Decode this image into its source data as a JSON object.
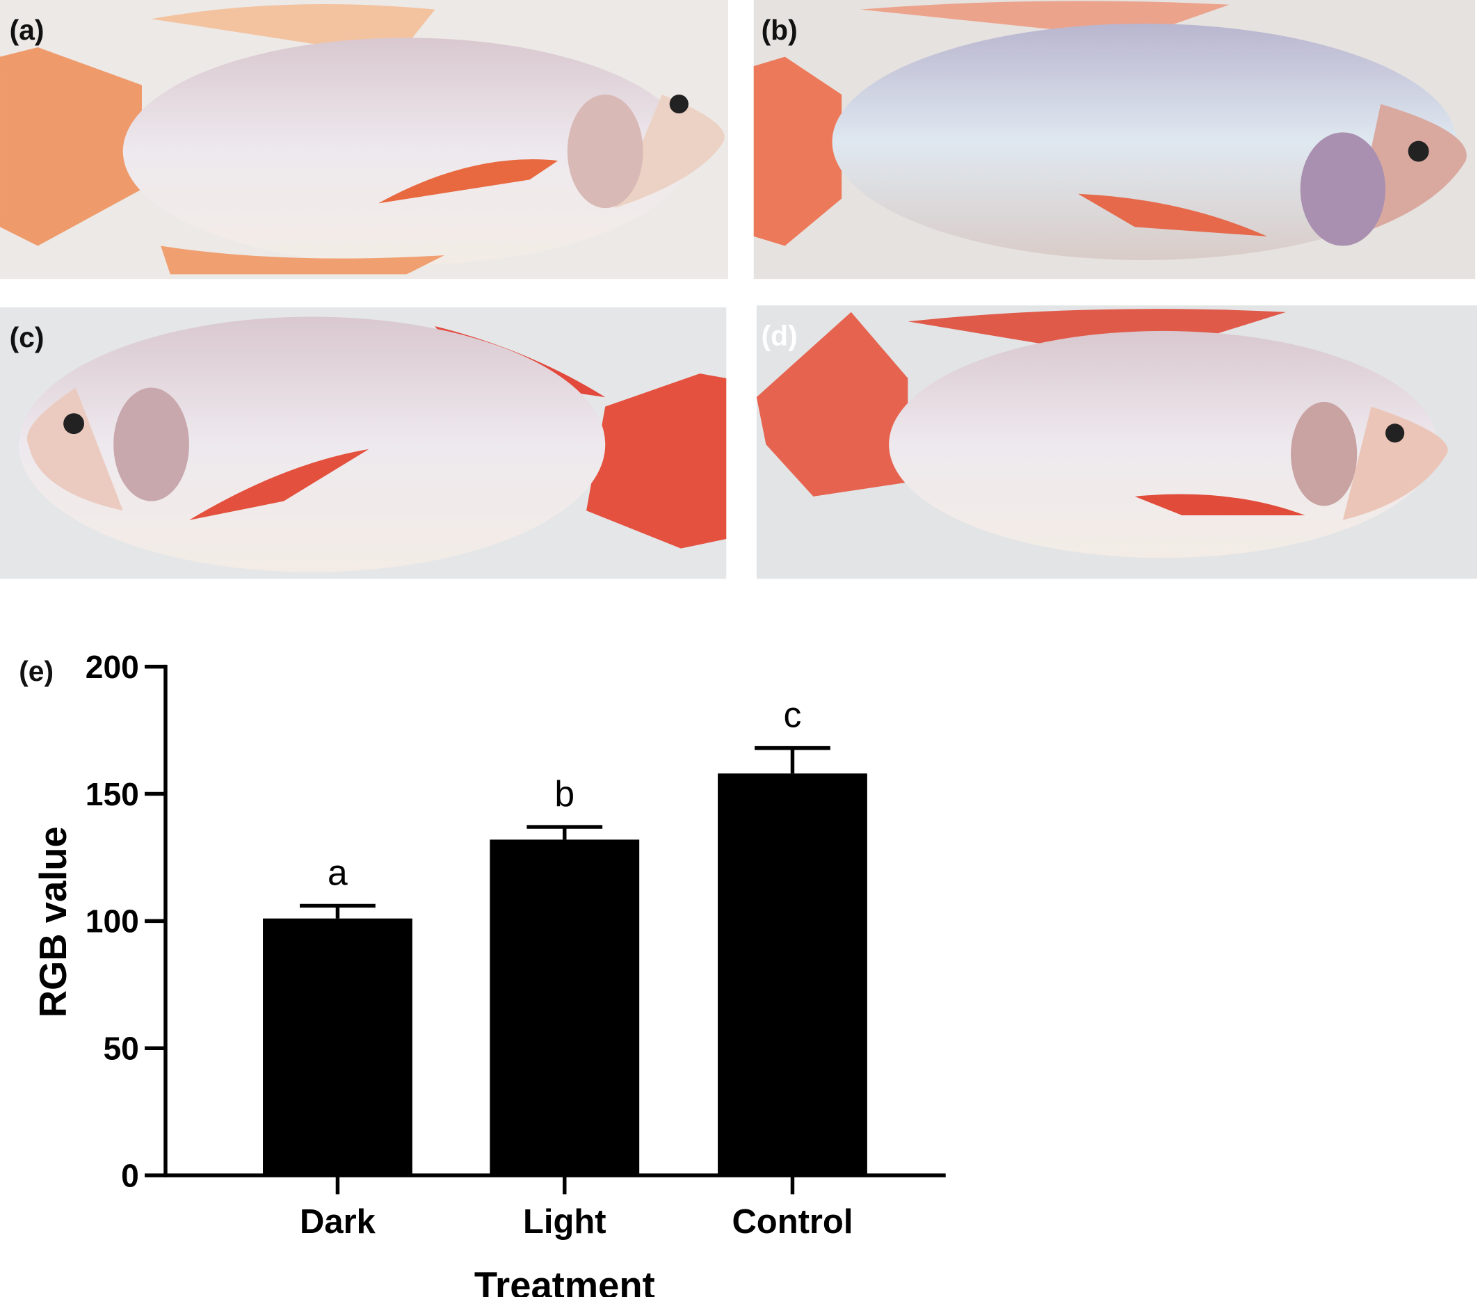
{
  "panels": [
    {
      "label": "(a)"
    },
    {
      "label": "(b)"
    },
    {
      "label": "(c)"
    },
    {
      "label": "(d)"
    }
  ],
  "chart_data": {
    "type": "bar",
    "panel_label": "(e)",
    "y_label": "RGB value",
    "x_label": "Treatment",
    "categories": [
      "Dark",
      "Light",
      "Control"
    ],
    "values": [
      101,
      132,
      158
    ],
    "errors": [
      5,
      5,
      10
    ],
    "annotations": [
      "a",
      "b",
      "c"
    ],
    "color": "#000000",
    "ylim": [
      0,
      200
    ],
    "yticks": [
      0,
      50,
      100,
      150,
      200
    ],
    "grid": false
  }
}
